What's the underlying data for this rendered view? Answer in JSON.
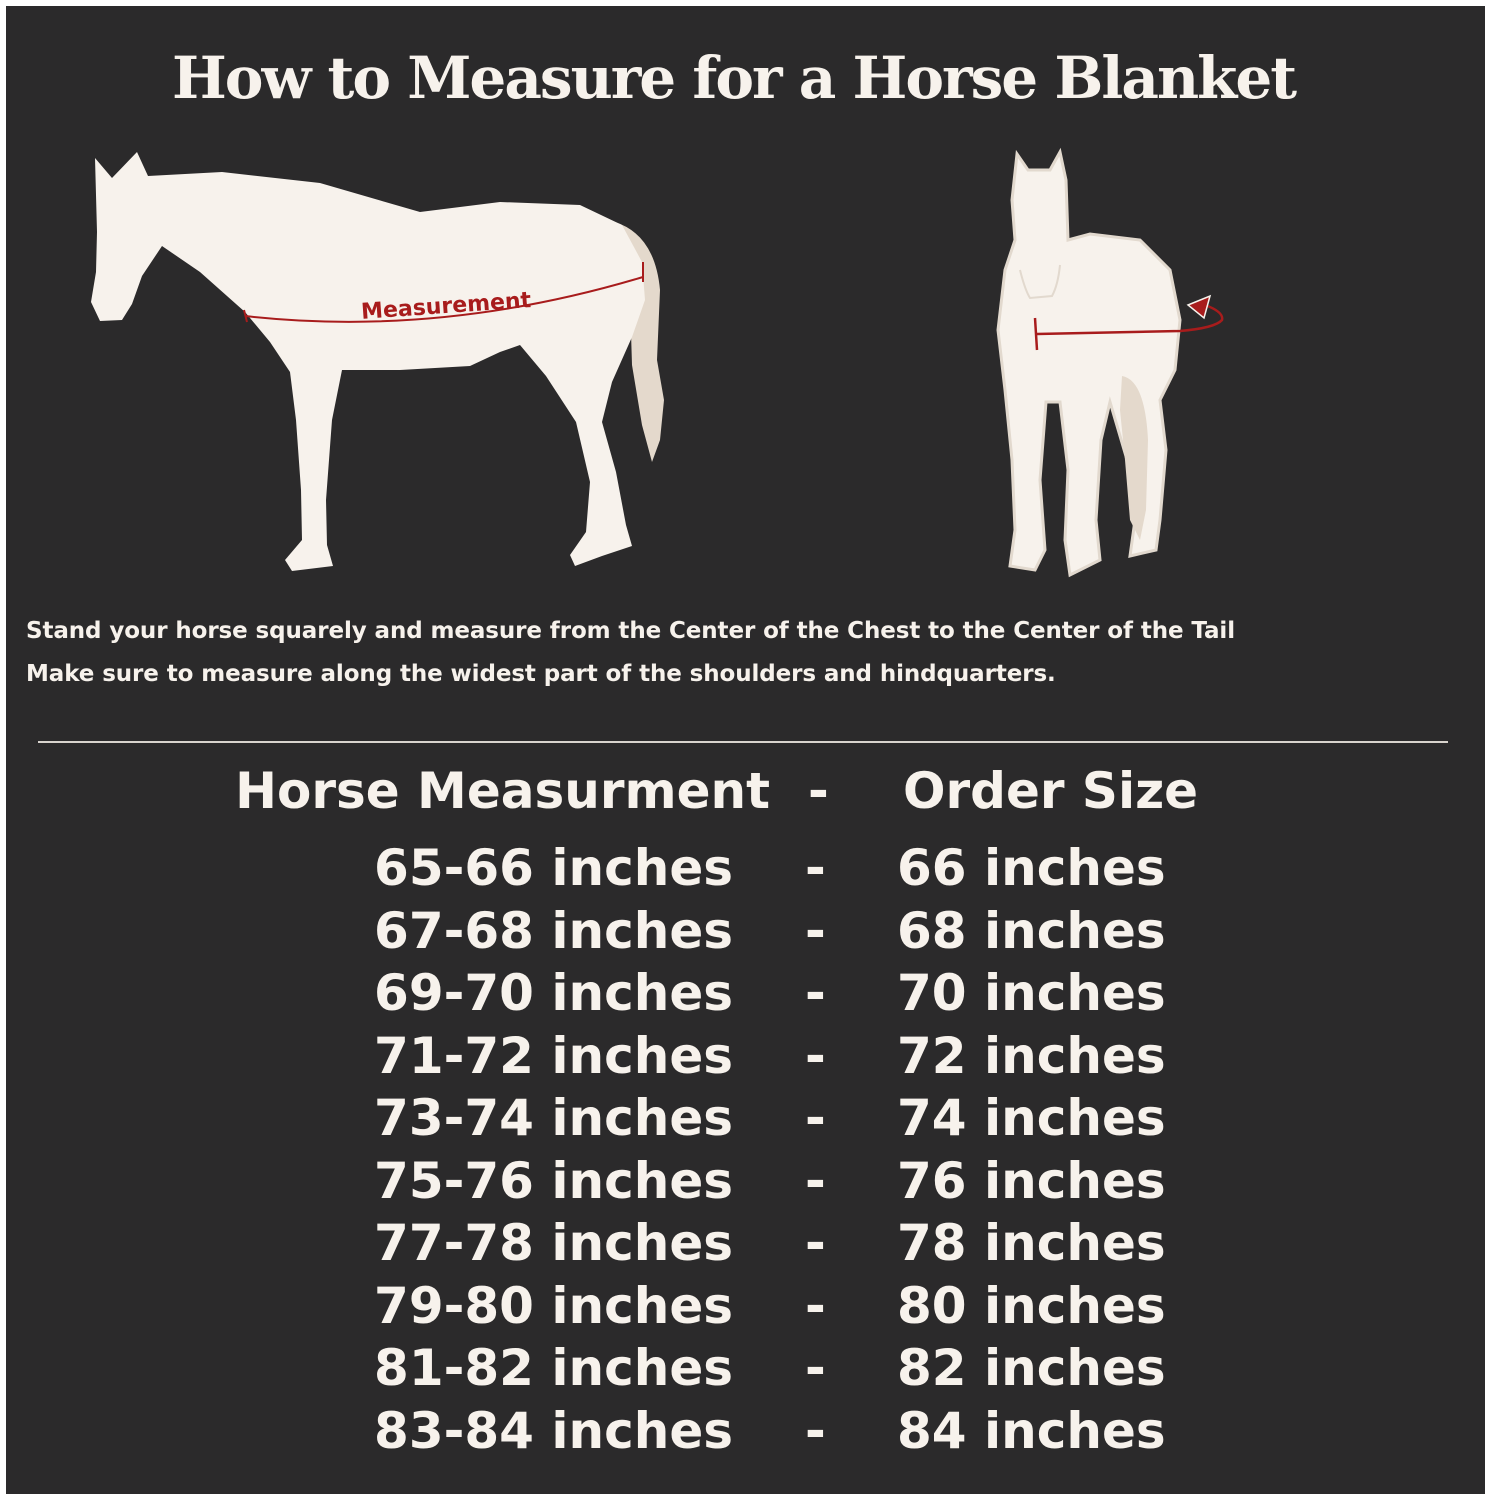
{
  "title": "How to Measure for a Horse Blanket",
  "diagram": {
    "side_label": "Measurement",
    "colors": {
      "background": "#2b2a2b",
      "horse": "#f7f2ec",
      "tail": "#e4d9cc",
      "measure_line": "#a81c1c"
    }
  },
  "instructions": [
    "Stand your horse squarely and measure from the Center of the Chest to the Center of the Tail",
    "Make sure to measure along the widest part of the shoulders and hindquarters."
  ],
  "table": {
    "header": {
      "measurement": "Horse Measurment",
      "separator": "-",
      "size": "Order Size"
    },
    "rows": [
      {
        "measurement": "65-66 inches",
        "separator": "-",
        "size": "66 inches"
      },
      {
        "measurement": "67-68 inches",
        "separator": "-",
        "size": "68 inches"
      },
      {
        "measurement": "69-70 inches",
        "separator": "-",
        "size": "70 inches"
      },
      {
        "measurement": "71-72 inches",
        "separator": "-",
        "size": "72 inches"
      },
      {
        "measurement": "73-74 inches",
        "separator": "-",
        "size": "74 inches"
      },
      {
        "measurement": "75-76 inches",
        "separator": "-",
        "size": "76 inches"
      },
      {
        "measurement": "77-78 inches",
        "separator": "-",
        "size": "78 inches"
      },
      {
        "measurement": "79-80 inches",
        "separator": "-",
        "size": "80 inches"
      },
      {
        "measurement": "81-82 inches",
        "separator": "-",
        "size": "82 inches"
      },
      {
        "measurement": "83-84 inches",
        "separator": "-",
        "size": "84 inches"
      }
    ]
  }
}
